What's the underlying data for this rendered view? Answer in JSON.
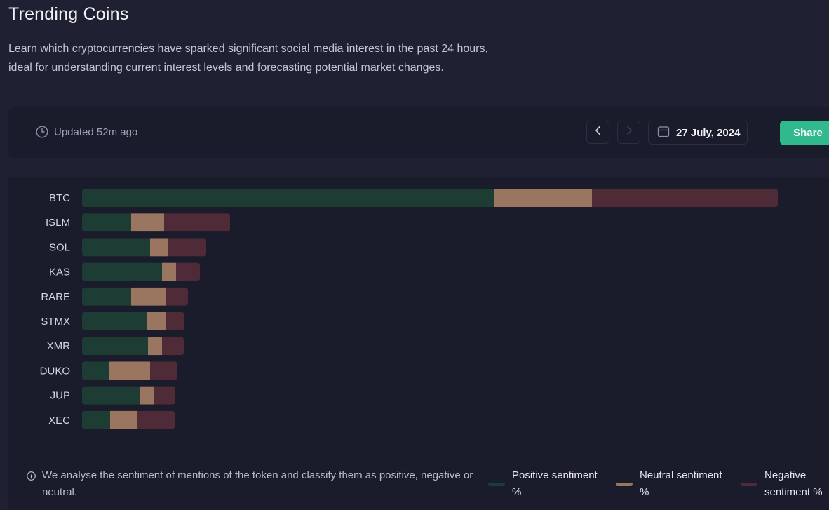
{
  "header": {
    "title": "Trending Coins",
    "description_line1": "Learn which cryptocurrencies have sparked significant social media interest in the past 24 hours,",
    "description_line2": "ideal for understanding current interest levels and forecasting potential market changes."
  },
  "toolbar": {
    "updated": "Updated 52m ago",
    "date": "27 July, 2024",
    "share_label": "Share",
    "clock_icon": "clock-icon",
    "calendar_icon": "calendar-icon"
  },
  "footer": {
    "info_text": "We analyse the sentiment of mentions of the token and classify them as positive, negative or neutral.",
    "legend": {
      "positive": "Positive sentiment %",
      "neutral": "Neutral sentiment %",
      "negative": "Negative sentiment %"
    }
  },
  "colors": {
    "positive": "#1d3d34",
    "neutral": "#9a7560",
    "negative": "#4f2a37",
    "accent": "#2fb98c"
  },
  "chart_data": {
    "type": "bar",
    "orientation": "horizontal",
    "stacked": true,
    "categories": [
      "BTC",
      "ISLM",
      "SOL",
      "KAS",
      "RARE",
      "STMX",
      "XMR",
      "DUKO",
      "JUP",
      "XEC"
    ],
    "series": [
      {
        "name": "Positive sentiment %",
        "values": [
          588,
          70,
          97,
          114,
          70,
          93,
          94,
          39,
          82,
          40
        ]
      },
      {
        "name": "Neutral sentiment %",
        "values": [
          139,
          47,
          25,
          20,
          49,
          27,
          20,
          58,
          21,
          39
        ]
      },
      {
        "name": "Negative sentiment %",
        "values": [
          265,
          94,
          55,
          34,
          32,
          26,
          31,
          39,
          30,
          53
        ]
      }
    ],
    "xlim": [
      0,
      992
    ]
  }
}
